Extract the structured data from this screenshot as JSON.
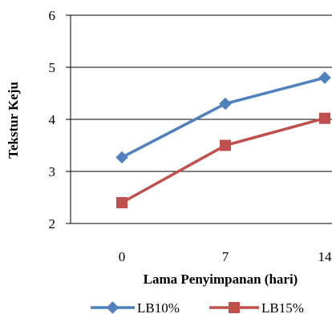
{
  "chart_data": {
    "type": "line",
    "title": "",
    "xlabel": "Lama Penyimpanan (hari)",
    "ylabel": "Tekstur Keju",
    "x": [
      0,
      7,
      14
    ],
    "x_tick_labels": [
      "0",
      "7",
      "14"
    ],
    "ylim": [
      2,
      6
    ],
    "y_ticks": [
      2,
      3,
      4,
      5,
      6
    ],
    "y_tick_labels": [
      "2",
      "3",
      "4",
      "5",
      "6"
    ],
    "grid": "horizontal major gridlines",
    "legend_position": "bottom",
    "series": [
      {
        "name": "LB10%",
        "values": [
          3.27,
          4.3,
          4.8
        ],
        "marker": "diamond",
        "color": "#4F81BD"
      },
      {
        "name": "LB15%",
        "values": [
          2.4,
          3.5,
          4.02
        ],
        "marker": "square",
        "color": "#C0504D"
      }
    ]
  }
}
